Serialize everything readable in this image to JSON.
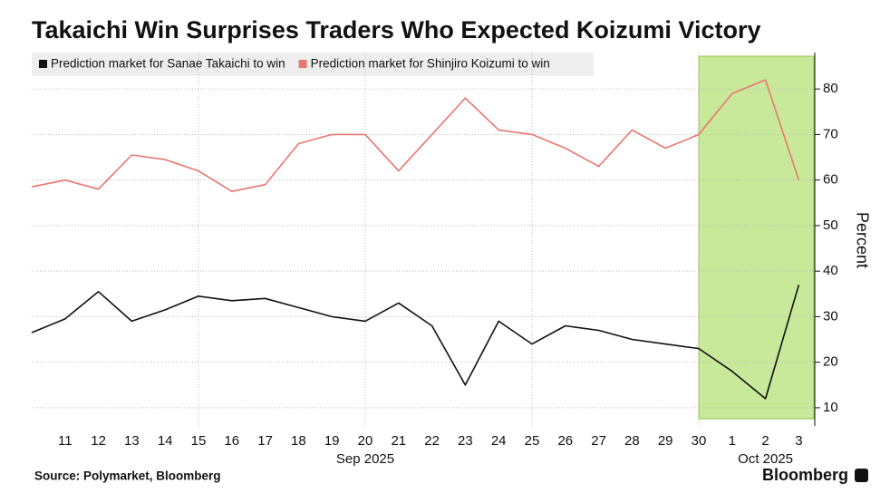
{
  "chart_data": {
    "type": "line",
    "title": "Takaichi Win Surprises Traders Who Expected Koizumi Victory",
    "y_axis_label": "Percent",
    "source": "Source: Polymarket, Bloomberg",
    "brand": "Bloomberg",
    "categories": [
      null,
      "11",
      "12",
      "13",
      "14",
      "15",
      "16",
      "17",
      "18",
      "19",
      "20",
      "21",
      "22",
      "23",
      "24",
      "25",
      "26",
      "27",
      "28",
      "29",
      "30",
      "1",
      "2",
      "3"
    ],
    "month_labels": [
      "Sep 2025",
      "Oct 2025"
    ],
    "series": [
      {
        "name": "Prediction market for Sanae Takaichi to win",
        "color": "#111111",
        "values": [
          26.5,
          29.5,
          35.5,
          29,
          31.5,
          34.5,
          33.5,
          34,
          32,
          30,
          29,
          33,
          28,
          15,
          29,
          24,
          28,
          27,
          25,
          24,
          23,
          18,
          12,
          37
        ]
      },
      {
        "name": "Prediction market for Shinjiro Koizumi to win",
        "color": "#e8776f",
        "values": [
          58.5,
          60,
          58,
          65.5,
          64.5,
          62,
          57.5,
          59,
          68,
          70,
          70,
          62,
          70,
          78,
          71,
          70,
          67,
          63,
          71,
          67,
          70,
          79,
          82,
          60
        ]
      }
    ],
    "ylim": [
      6,
      88
    ],
    "yticks": [
      10,
      20,
      30,
      40,
      50,
      60,
      70,
      80
    ],
    "grid": true,
    "xgrid_at": [
      "15",
      "20",
      "25",
      "30"
    ],
    "shaded_span": {
      "start": "30",
      "color": "#c8e89a",
      "edge": "#8cc63f"
    }
  }
}
